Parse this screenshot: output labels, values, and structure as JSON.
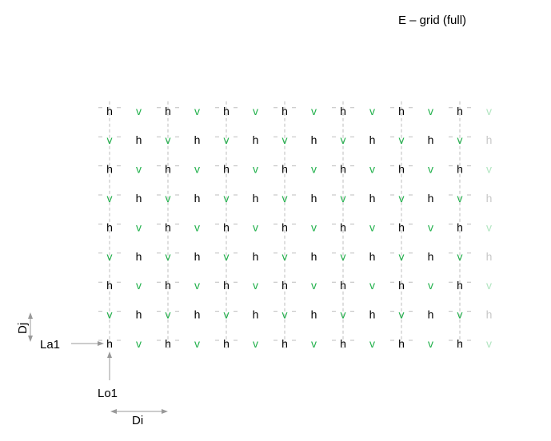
{
  "title": "E – grid (full)",
  "grid": {
    "rows": 9,
    "cols": 14,
    "bottom_row_first_symbol": "h",
    "symbols": {
      "h": {
        "text": "h",
        "color": "#000000",
        "faded_color": "#c8c8c8"
      },
      "v": {
        "text": "v",
        "color": "#22b14c",
        "faded_color": "#b3e6c2"
      }
    },
    "faded_last_column": true,
    "guide_color": "#bdbdbd"
  },
  "labels": {
    "la1": "La1",
    "lo1": "Lo1",
    "di": "Di",
    "dj": "Dj"
  },
  "arrow_color": "#999999"
}
